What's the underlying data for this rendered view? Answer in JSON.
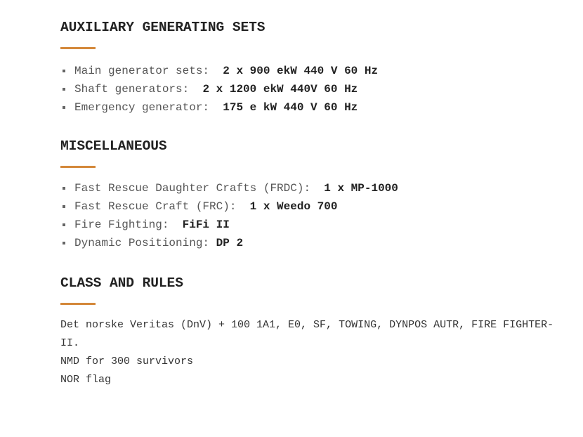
{
  "accent_color": "#d4883a",
  "sections": [
    {
      "title": "AUXILIARY GENERATING SETS",
      "items": [
        {
          "label": "Main generator sets:",
          "value": "2 x 900 ekW 440 V 60 Hz"
        },
        {
          "label": "Shaft generators:",
          "value": "2 x 1200 ekW 440V 60 Hz"
        },
        {
          "label": "Emergency generator:",
          "value": "175 e kW 440 V 60 Hz"
        }
      ]
    },
    {
      "title": "MISCELLANEOUS",
      "items": [
        {
          "label": "Fast Rescue Daughter Crafts (FRDC):",
          "value": "1 x MP-1000"
        },
        {
          "label": "Fast Rescue Craft (FRC):",
          "value": "1 x Weedo 700"
        },
        {
          "label": "Fire Fighting:",
          "value": "FiFi II"
        },
        {
          "label": "Dynamic Positioning:",
          "value": "DP 2"
        }
      ]
    },
    {
      "title": "CLASS AND RULES",
      "lines": [
        "Det norske Veritas (DnV) + 100 1A1, E0, SF, TOWING, DYNPOS AUTR, FIRE FIGHTER-",
        "II.",
        "NMD for 300 survivors",
        "NOR flag"
      ]
    }
  ]
}
